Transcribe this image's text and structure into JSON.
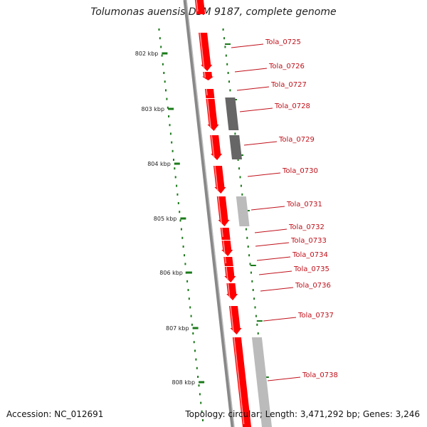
{
  "title": "Tolumonas auensis DSM 9187, complete genome",
  "footer": {
    "accession": "Accession: NC_012691",
    "summary": "Topology: circular; Length: 3,471,292 bp; Genes: 3,246"
  },
  "colors": {
    "cds": "#ff0000",
    "gene_dark": "#666666",
    "gene_light": "#bbbbbb",
    "backbone": "#888888",
    "gc_skew": "#1a7a1a",
    "label": "#c0101a"
  },
  "scale_ticks": [
    "802 kbp",
    "803 kbp",
    "804 kbp",
    "805 kbp",
    "806 kbp",
    "807 kbp",
    "808 kbp"
  ],
  "gene_labels": [
    "Tola_0725",
    "Tola_0726",
    "Tola_0727",
    "Tola_0728",
    "Tola_0729",
    "Tola_0730",
    "Tola_0731",
    "Tola_0732",
    "Tola_0733",
    "Tola_0734",
    "Tola_0735",
    "Tola_0736",
    "Tola_0737",
    "Tola_0738"
  ]
}
